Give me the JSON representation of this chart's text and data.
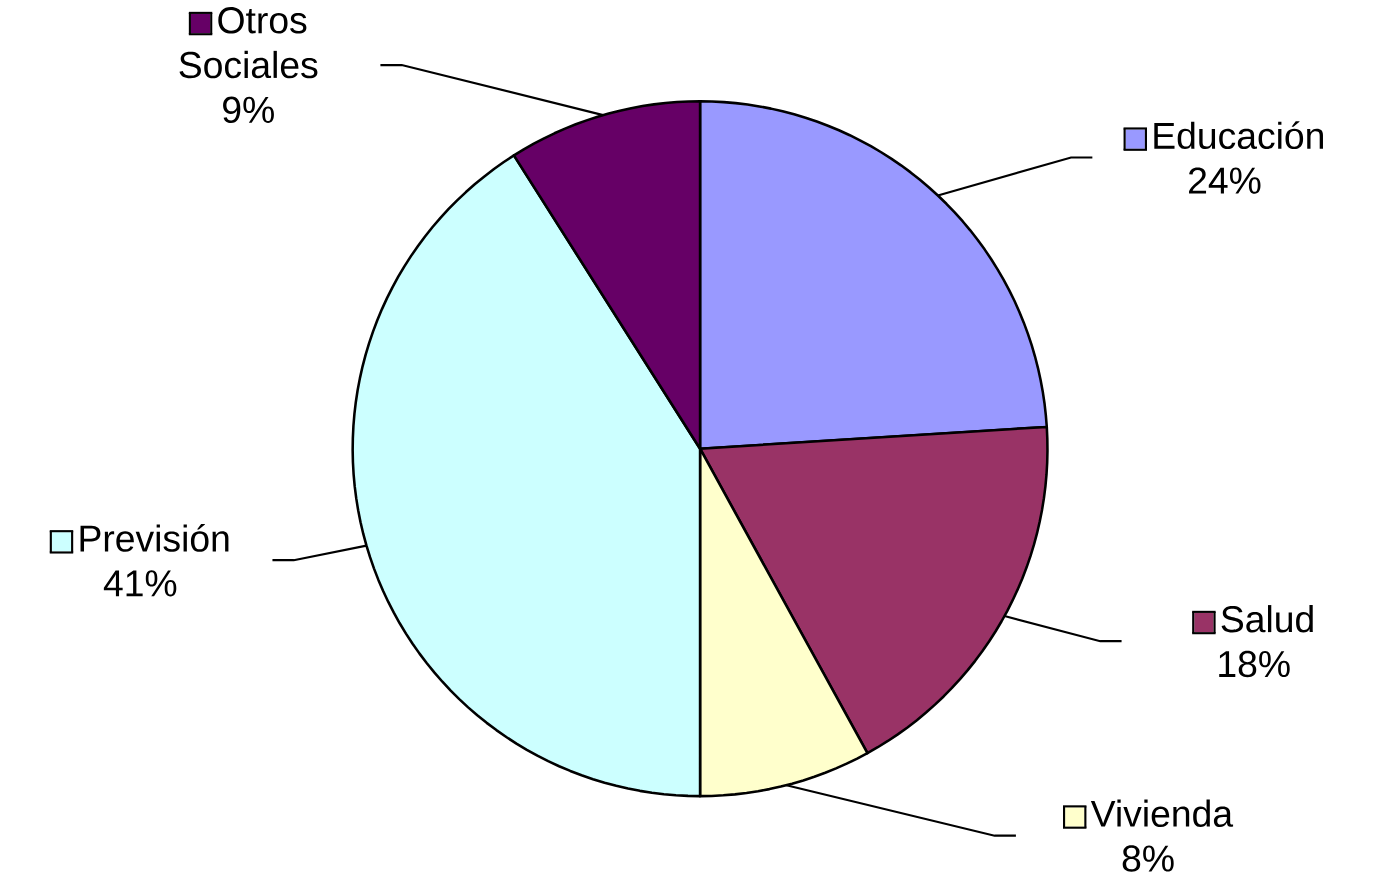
{
  "chart_data": {
    "type": "pie",
    "categories": [
      "Educación",
      "Salud",
      "Vivienda",
      "Previsión",
      "Otros Sociales"
    ],
    "values": [
      24,
      18,
      8,
      41,
      9
    ],
    "colors": [
      "#9999ff",
      "#993366",
      "#ffffcc",
      "#ccffff",
      "#660066"
    ],
    "value_labels": [
      "24%",
      "18%",
      "8%",
      "41%",
      "9%"
    ],
    "legend": "right"
  }
}
